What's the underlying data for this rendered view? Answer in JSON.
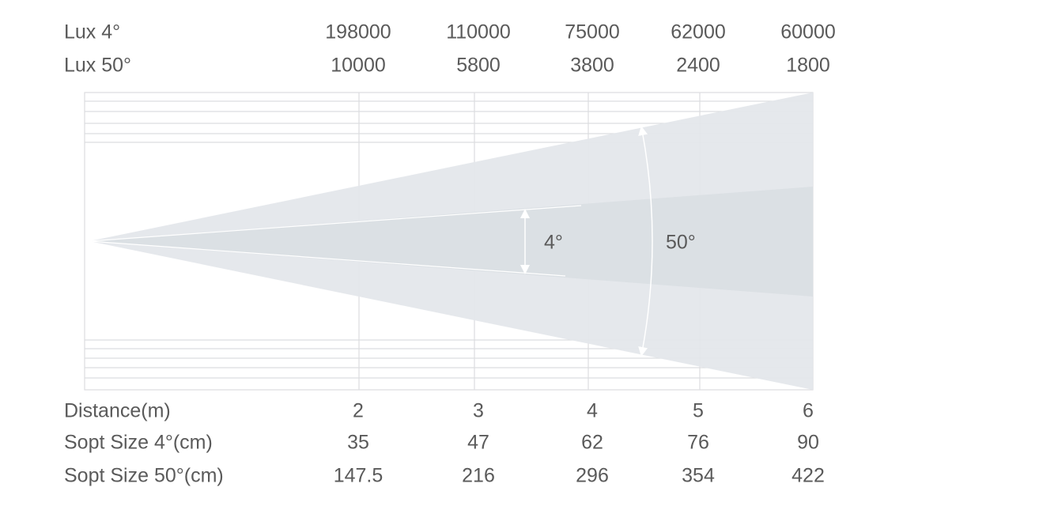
{
  "rows": [
    {
      "label": "Lux 4°",
      "values": [
        198000,
        110000,
        75000,
        62000,
        60000
      ]
    },
    {
      "label": "Lux 50°",
      "values": [
        10000,
        5800,
        3800,
        2400,
        1800
      ]
    },
    {
      "label": "Distance(m)",
      "values": [
        2,
        3,
        4,
        5,
        6
      ]
    },
    {
      "label": "Sopt Size 4°(cm)",
      "values": [
        35,
        47,
        62,
        76,
        90
      ]
    },
    {
      "label": "Sopt Size 50°(cm)",
      "values": [
        147.5,
        216,
        296,
        354,
        422
      ]
    }
  ],
  "beam_labels": {
    "narrow": "4°",
    "wide": "50°"
  }
}
